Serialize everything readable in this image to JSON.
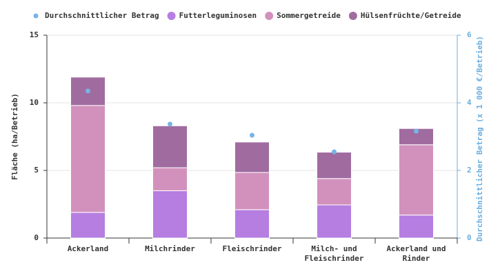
{
  "chart_data": {
    "type": "bar",
    "stacked": true,
    "categories": [
      "Ackerland",
      "Milchrinder",
      "Fleischrinder",
      "Milch- und Fleischrinder",
      "Ackerland und Rinder"
    ],
    "series": [
      {
        "name": "Durchschnittlicher Betrag",
        "color": "#78b4e6",
        "type": "scatter",
        "axis": "y2",
        "values": [
          4.35,
          3.37,
          3.04,
          2.55,
          3.16
        ]
      },
      {
        "name": "Futterleguminosen",
        "color": "#b57ee0",
        "values": [
          1.9,
          3.5,
          2.1,
          2.45,
          1.7
        ]
      },
      {
        "name": "Sommergetreide",
        "color": "#d291bc",
        "values": [
          7.9,
          1.7,
          2.75,
          1.95,
          5.2
        ]
      },
      {
        "name": "Hülsenfrüchte/Getreide",
        "color": "#a06ca0",
        "values": [
          2.1,
          3.1,
          2.25,
          1.95,
          1.2
        ]
      }
    ],
    "ylabel": "Fläche (ha/Betrieb)",
    "ylim": [
      0,
      15
    ],
    "yticks": [
      0,
      5,
      10,
      15
    ],
    "y2label": "Durchschnittlicher Betrag (x 1 000 €/Betrieb)",
    "y2lim": [
      0,
      6
    ],
    "y2ticks": [
      0,
      2,
      4,
      6
    ],
    "y2color": "#6aaee0",
    "grid": true
  }
}
